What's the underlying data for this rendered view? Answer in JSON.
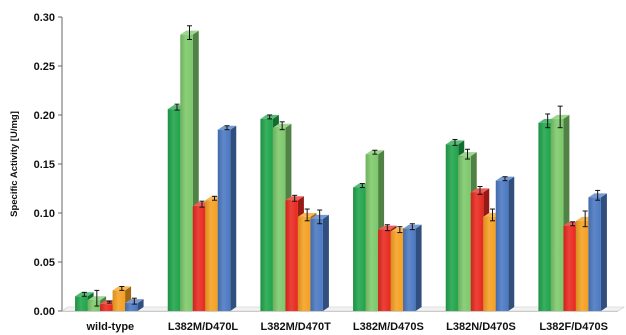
{
  "chart_data": {
    "type": "bar",
    "ylabel": "Specific Activity [U/mg]",
    "ylim": [
      0,
      0.3
    ],
    "yticks": [
      "0.00",
      "0.05",
      "0.10",
      "0.15",
      "0.20",
      "0.25",
      "0.30"
    ],
    "categories": [
      "wild-type",
      "L382M/D470L",
      "L382M/D470T",
      "L382M/D470S",
      "L382N/D470S",
      "L382F/D470S"
    ],
    "grid": false,
    "legend": "none",
    "series": [
      {
        "color": "#1fa44a",
        "values": [
          0.015,
          0.206,
          0.196,
          0.126,
          0.17,
          0.192
        ],
        "errors": [
          0.002,
          0.003,
          0.002,
          0.002,
          0.003,
          0.007
        ]
      },
      {
        "color": "#7cc86a",
        "values": [
          0.011,
          0.282,
          0.187,
          0.16,
          0.158,
          0.196
        ],
        "errors": [
          0.008,
          0.007,
          0.004,
          0.002,
          0.005,
          0.011
        ]
      },
      {
        "color": "#e8281e",
        "values": [
          0.007,
          0.107,
          0.113,
          0.083,
          0.121,
          0.087
        ],
        "errors": [
          0.001,
          0.003,
          0.003,
          0.003,
          0.004,
          0.002
        ]
      },
      {
        "color": "#f5a020",
        "values": [
          0.021,
          0.113,
          0.096,
          0.081,
          0.096,
          0.092
        ],
        "errors": [
          0.002,
          0.002,
          0.006,
          0.003,
          0.006,
          0.008
        ]
      },
      {
        "color": "#4a78c2",
        "values": [
          0.008,
          0.185,
          0.094,
          0.084,
          0.133,
          0.116
        ],
        "errors": [
          0.003,
          0.002,
          0.007,
          0.003,
          0.002,
          0.005
        ]
      }
    ]
  }
}
